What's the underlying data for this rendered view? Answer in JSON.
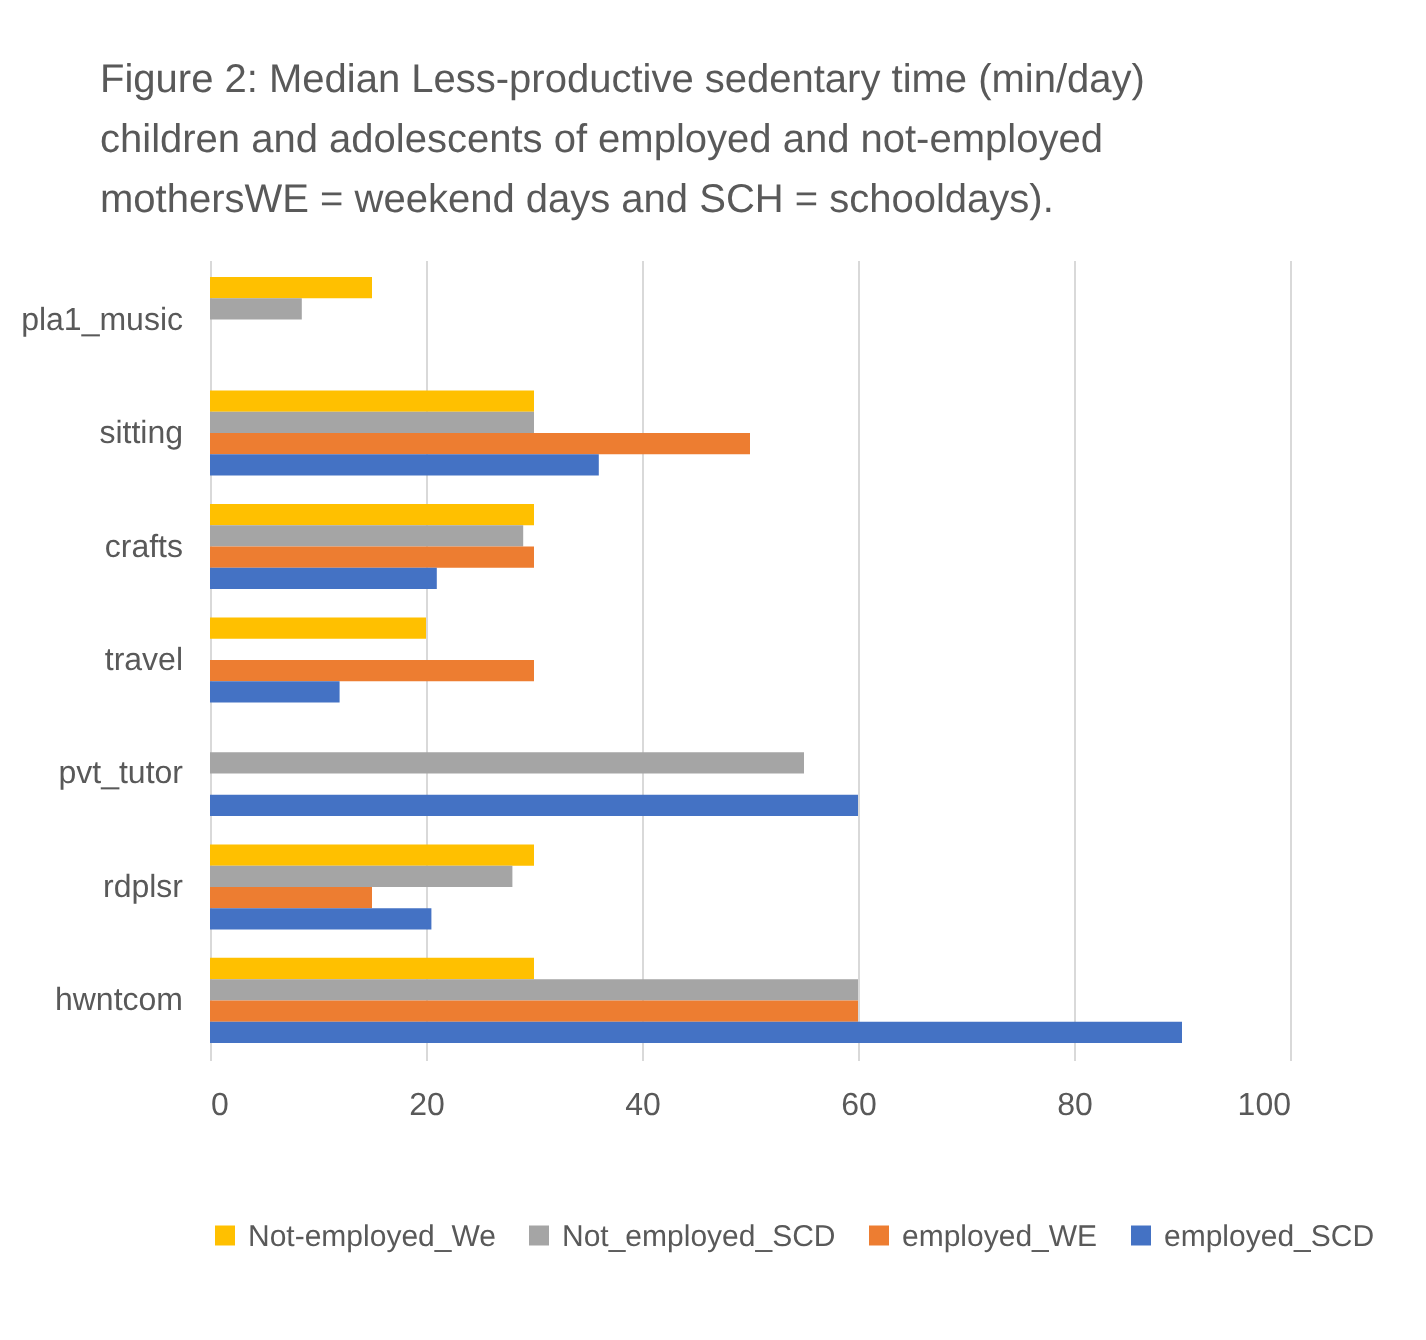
{
  "chart_data": {
    "type": "bar",
    "orientation": "horizontal",
    "title": "Figure 2: Median Less-productive sedentary time (min/day) children and adolescents of employed and not-employed mothersWE = weekend days and SCH = schooldays).",
    "categories": [
      "pla1_music",
      "sitting",
      "crafts",
      "travel",
      "pvt_tutor",
      "rdplsr",
      "hwntcom"
    ],
    "series": [
      {
        "name": "Not-employed_We",
        "color": "#ffc000",
        "values": [
          15,
          30,
          30,
          20,
          null,
          30,
          30
        ]
      },
      {
        "name": "Not_employed_SCD",
        "color": "#a5a5a5",
        "values": [
          8.5,
          30,
          29,
          null,
          55,
          28,
          60
        ]
      },
      {
        "name": "employed_WE",
        "color": "#ed7d31",
        "values": [
          null,
          50,
          30,
          30,
          null,
          15,
          60
        ]
      },
      {
        "name": "employed_SCD",
        "color": "#4472c4",
        "values": [
          null,
          36,
          21,
          12,
          60,
          20.5,
          90
        ]
      }
    ],
    "xlim": [
      0,
      100
    ],
    "xticks": [
      0,
      20,
      40,
      60,
      80,
      100
    ],
    "grid": "x",
    "legend": "bottom"
  }
}
